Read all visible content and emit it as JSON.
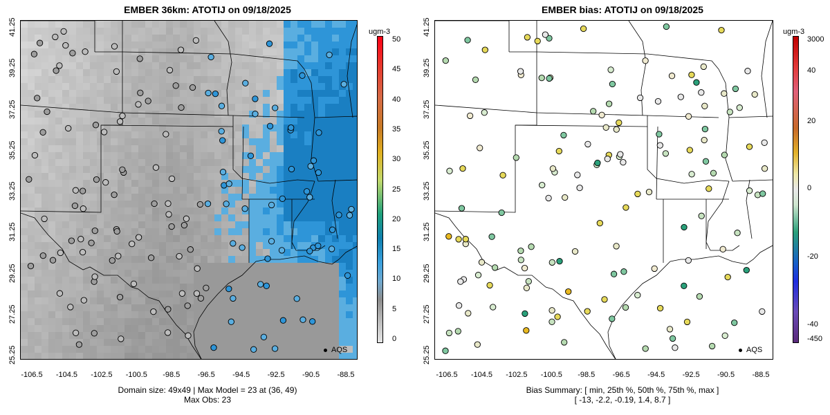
{
  "left": {
    "title": "EMBER 36km: ATOTIJ on 09/18/2025",
    "caption_line1": "Domain size: 49x49 | Max Model = 23 at (36, 49)",
    "caption_line2": "Max Obs: 23",
    "legend_label": "AQS",
    "colorbar": {
      "unit": "ugm-3",
      "labels": [
        "50",
        "45",
        "40",
        "35",
        "30",
        "25",
        "20",
        "15",
        "10",
        "5",
        "0"
      ]
    }
  },
  "right": {
    "title": "EMBER bias: ATOTIJ on 09/18/2025",
    "caption_line1": "Bias Summary: [ min, 25th %, 50th %, 75th %, max ]",
    "caption_line2": "[ -13,   -2.2,   -0.19,   1.4,   8.7 ]",
    "legend_label": "AQS",
    "colorbar": {
      "unit": "ugm-3",
      "labels": [
        "3000",
        "40",
        "20",
        "0",
        "-20",
        "-40",
        "-450"
      ]
    }
  },
  "axes": {
    "y_ticks": [
      "41.25",
      "39.25",
      "37.25",
      "35.25",
      "33.25",
      "31.25",
      "29.25",
      "27.25",
      "25.25"
    ],
    "x_ticks": [
      "-106.5",
      "-104.5",
      "-102.5",
      "-100.5",
      "-98.5",
      "-96.5",
      "-94.5",
      "-92.5",
      "-90.5",
      "-88.5"
    ]
  },
  "colors": {
    "model_low": "#e6e6e6",
    "model_mid": "#8c8c8c",
    "model_high": "#2b8fd4",
    "bias_neutral": "#e8e8e8"
  }
}
